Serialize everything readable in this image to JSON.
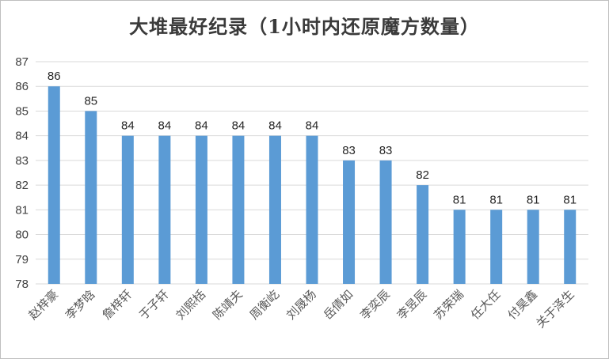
{
  "chart_data": {
    "type": "bar",
    "title": "大堆最好纪录（1小时内还原魔方数量）",
    "xlabel": "",
    "ylabel": "",
    "categories": [
      "赵梓豪",
      "李梦晗",
      "詹梓轩",
      "于子轩",
      "刘熙栝",
      "陈靖夫",
      "周衡屹",
      "刘晟杨",
      "岳倩如",
      "李奕辰",
      "李昱辰",
      "苏荣瑞",
      "任大任",
      "付昊鑫",
      "关于泽生"
    ],
    "values": [
      86,
      85,
      84,
      84,
      84,
      84,
      84,
      84,
      83,
      83,
      82,
      81,
      81,
      81,
      81
    ],
    "ylim": [
      78,
      87
    ],
    "yticks": [
      78,
      79,
      80,
      81,
      82,
      83,
      84,
      85,
      86,
      87
    ],
    "grid": true,
    "legend": "none",
    "bar_color": "#5b9bd5",
    "grid_color": "#d9d9d9"
  }
}
